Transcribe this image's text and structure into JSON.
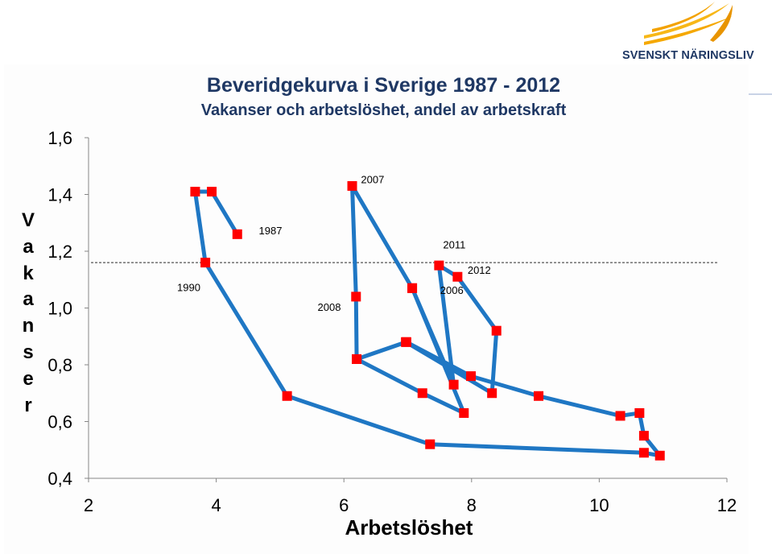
{
  "title": "Beveridgekurva i Sverige 1987 - 2012",
  "subtitle": "Vakanser och arbetslöshet, andel av arbetskraft",
  "logo": {
    "text": "SVENSKT NÄRINGSLIV"
  },
  "colors": {
    "line": "#1f77c4",
    "marker": "#ff0000",
    "title": "#1f3864",
    "logo_orange": "#f5a800"
  },
  "chart_data": {
    "type": "line",
    "title": "Beveridgekurva i Sverige 1987 - 2012",
    "subtitle": "Vakanser och arbetslöshet, andel av arbetskraft",
    "xlabel": "Arbetslöshet",
    "ylabel": "Vakanser",
    "xlim": [
      2,
      12
    ],
    "ylim": [
      0.4,
      1.6
    ],
    "x_ticks": [
      "2",
      "4",
      "6",
      "8",
      "10",
      "12"
    ],
    "y_ticks": [
      "0,4",
      "0,6",
      "0,8",
      "1,0",
      "1,2",
      "1,4",
      "1,6"
    ],
    "reference_line": 1.16,
    "grid": false,
    "series": [
      {
        "points": [
          [
            4.33,
            1.26
          ],
          [
            3.93,
            1.41
          ],
          [
            3.67,
            1.41
          ],
          [
            3.83,
            1.16
          ],
          [
            5.11,
            0.69
          ],
          [
            7.35,
            0.52
          ],
          [
            10.7,
            0.49
          ],
          [
            10.95,
            0.48
          ],
          [
            10.7,
            0.55
          ],
          [
            10.63,
            0.63
          ],
          [
            10.33,
            0.62
          ],
          [
            9.05,
            0.69
          ],
          [
            7.99,
            0.76
          ],
          [
            6.98,
            0.88
          ],
          [
            6.2,
            0.82
          ],
          [
            6.97,
            0.88
          ],
          [
            8.32,
            0.7
          ],
          [
            8.39,
            0.92
          ],
          [
            7.78,
            1.11
          ],
          [
            7.49,
            1.15
          ],
          [
            7.72,
            0.73
          ],
          [
            7.07,
            1.07
          ],
          [
            6.13,
            1.43
          ],
          [
            6.19,
            1.04
          ],
          [
            6.2,
            0.82
          ],
          [
            7.23,
            0.7
          ],
          [
            7.88,
            0.63
          ],
          [
            7.07,
            1.07
          ]
        ]
      }
    ],
    "annotations": [
      {
        "text": "1987",
        "x": 4.85,
        "y": 1.26
      },
      {
        "text": "1990",
        "x": 3.57,
        "y": 1.06
      },
      {
        "text": "2007",
        "x": 6.45,
        "y": 1.44
      },
      {
        "text": "2008",
        "x": 5.77,
        "y": 0.99
      },
      {
        "text": "2011",
        "x": 7.73,
        "y": 1.21
      },
      {
        "text": "2012",
        "x": 8.12,
        "y": 1.12
      },
      {
        "text": "2006",
        "x": 7.69,
        "y": 1.05
      }
    ]
  }
}
